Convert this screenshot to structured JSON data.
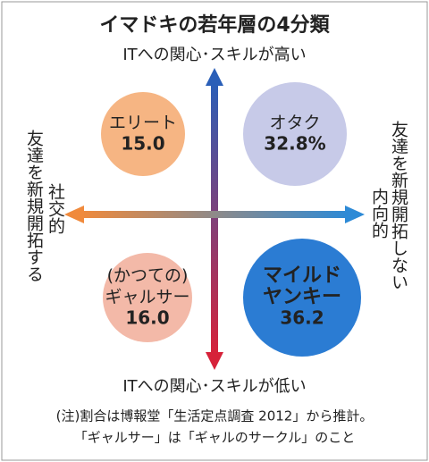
{
  "title": "イマドキの若年層の4分類",
  "axis_labels": {
    "top": "ITへの関心･スキルが高い",
    "bottom": "ITへの関心･スキルが低い",
    "left_outer": "友達を新規開拓する",
    "left_inner": "社交的",
    "right_outer": "友達を新規開拓しない",
    "right_inner": "内向的"
  },
  "groups": [
    {
      "label": [
        "エリート"
      ],
      "value": "15.0"
    },
    {
      "label": [
        "オタク"
      ],
      "value": "32.8%"
    },
    {
      "label": [
        "(かつての)",
        "ギャルサー"
      ],
      "value": "16.0"
    },
    {
      "label": [
        "マイルド",
        "ヤンキー"
      ],
      "value": "36.2"
    }
  ],
  "notes": [
    "(注)割合は博報堂「生活定点調査 2012」から推計。",
    "「ギャルサー」は「ギャルのサークル」のこと"
  ]
}
